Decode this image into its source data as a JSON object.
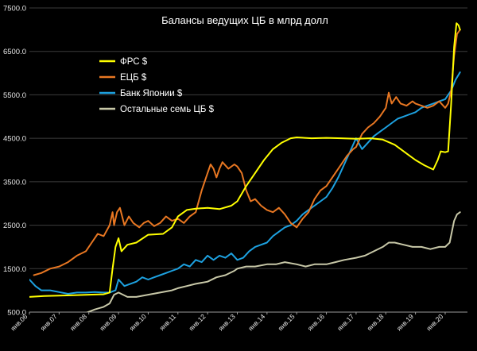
{
  "chart_data": {
    "type": "line",
    "title": "Балансы ведущих ЦБ в млрд долл",
    "xlabel": "",
    "ylabel": "",
    "ylim": [
      500,
      7500
    ],
    "xlim": [
      2006.0,
      2020.75
    ],
    "y_ticks": [
      {
        "v": 500,
        "label": "500.0"
      },
      {
        "v": 1500,
        "label": "1500.0"
      },
      {
        "v": 2500,
        "label": "2500.0"
      },
      {
        "v": 3500,
        "label": "3500.0"
      },
      {
        "v": 4500,
        "label": "4500.0"
      },
      {
        "v": 5500,
        "label": "5500.0"
      },
      {
        "v": 6500,
        "label": "6500.0"
      },
      {
        "v": 7500,
        "label": "7500.0"
      }
    ],
    "x_ticks": [
      {
        "v": 2006,
        "label": "янв.06"
      },
      {
        "v": 2007,
        "label": "янв.07"
      },
      {
        "v": 2008,
        "label": "янв.08"
      },
      {
        "v": 2009,
        "label": "янв.09"
      },
      {
        "v": 2010,
        "label": "янв.10"
      },
      {
        "v": 2011,
        "label": "янв.11"
      },
      {
        "v": 2012,
        "label": "янв.12"
      },
      {
        "v": 2013,
        "label": "янв.13"
      },
      {
        "v": 2014,
        "label": "янв.14"
      },
      {
        "v": 2015,
        "label": "янв.15"
      },
      {
        "v": 2016,
        "label": "янв.16"
      },
      {
        "v": 2017,
        "label": "янв.17"
      },
      {
        "v": 2018,
        "label": "янв.18"
      },
      {
        "v": 2019,
        "label": "янв.19"
      },
      {
        "v": 2020,
        "label": "янв.20"
      }
    ],
    "grid": "horizontal",
    "legend_position": "top-left",
    "series": [
      {
        "name": "ФРС $",
        "color": "#ffff00",
        "points": [
          [
            2006.0,
            850
          ],
          [
            2006.5,
            870
          ],
          [
            2007.0,
            880
          ],
          [
            2007.5,
            890
          ],
          [
            2008.0,
            900
          ],
          [
            2008.5,
            910
          ],
          [
            2008.7,
            950
          ],
          [
            2008.8,
            1500
          ],
          [
            2008.9,
            2000
          ],
          [
            2009.0,
            2200
          ],
          [
            2009.1,
            1900
          ],
          [
            2009.3,
            2050
          ],
          [
            2009.6,
            2100
          ],
          [
            2010.0,
            2280
          ],
          [
            2010.5,
            2300
          ],
          [
            2010.8,
            2450
          ],
          [
            2011.0,
            2700
          ],
          [
            2011.3,
            2850
          ],
          [
            2011.6,
            2880
          ],
          [
            2012.0,
            2900
          ],
          [
            2012.4,
            2870
          ],
          [
            2012.8,
            2950
          ],
          [
            2013.0,
            3050
          ],
          [
            2013.3,
            3400
          ],
          [
            2013.6,
            3700
          ],
          [
            2013.9,
            4000
          ],
          [
            2014.2,
            4250
          ],
          [
            2014.5,
            4400
          ],
          [
            2014.8,
            4500
          ],
          [
            2015.0,
            4520
          ],
          [
            2015.5,
            4500
          ],
          [
            2016.0,
            4510
          ],
          [
            2016.5,
            4500
          ],
          [
            2017.0,
            4490
          ],
          [
            2017.5,
            4500
          ],
          [
            2017.9,
            4470
          ],
          [
            2018.3,
            4350
          ],
          [
            2018.7,
            4150
          ],
          [
            2019.0,
            4000
          ],
          [
            2019.3,
            3880
          ],
          [
            2019.6,
            3780
          ],
          [
            2019.75,
            4000
          ],
          [
            2019.85,
            4200
          ],
          [
            2020.0,
            4180
          ],
          [
            2020.1,
            4200
          ],
          [
            2020.2,
            5300
          ],
          [
            2020.3,
            6600
          ],
          [
            2020.38,
            7150
          ],
          [
            2020.45,
            7100
          ],
          [
            2020.5,
            7000
          ]
        ]
      },
      {
        "name": "ЕЦБ $",
        "color": "#e87722",
        "points": [
          [
            2006.15,
            1350
          ],
          [
            2006.4,
            1400
          ],
          [
            2006.7,
            1500
          ],
          [
            2007.0,
            1550
          ],
          [
            2007.3,
            1650
          ],
          [
            2007.6,
            1800
          ],
          [
            2007.9,
            1900
          ],
          [
            2008.1,
            2100
          ],
          [
            2008.3,
            2300
          ],
          [
            2008.5,
            2250
          ],
          [
            2008.7,
            2500
          ],
          [
            2008.8,
            2800
          ],
          [
            2008.85,
            2500
          ],
          [
            2008.95,
            2800
          ],
          [
            2009.05,
            2900
          ],
          [
            2009.2,
            2500
          ],
          [
            2009.35,
            2700
          ],
          [
            2009.5,
            2550
          ],
          [
            2009.7,
            2450
          ],
          [
            2009.85,
            2550
          ],
          [
            2010.0,
            2600
          ],
          [
            2010.2,
            2480
          ],
          [
            2010.4,
            2550
          ],
          [
            2010.6,
            2700
          ],
          [
            2010.8,
            2600
          ],
          [
            2011.0,
            2650
          ],
          [
            2011.2,
            2550
          ],
          [
            2011.4,
            2700
          ],
          [
            2011.6,
            2800
          ],
          [
            2011.8,
            3300
          ],
          [
            2012.0,
            3700
          ],
          [
            2012.1,
            3900
          ],
          [
            2012.2,
            3800
          ],
          [
            2012.3,
            3600
          ],
          [
            2012.4,
            3800
          ],
          [
            2012.5,
            3950
          ],
          [
            2012.7,
            3800
          ],
          [
            2012.9,
            3900
          ],
          [
            2013.0,
            3850
          ],
          [
            2013.15,
            3700
          ],
          [
            2013.3,
            3300
          ],
          [
            2013.45,
            3050
          ],
          [
            2013.6,
            3100
          ],
          [
            2013.8,
            2950
          ],
          [
            2014.0,
            2850
          ],
          [
            2014.2,
            2800
          ],
          [
            2014.4,
            2900
          ],
          [
            2014.6,
            2750
          ],
          [
            2014.8,
            2550
          ],
          [
            2015.0,
            2450
          ],
          [
            2015.2,
            2650
          ],
          [
            2015.4,
            2800
          ],
          [
            2015.6,
            3100
          ],
          [
            2015.8,
            3300
          ],
          [
            2016.0,
            3400
          ],
          [
            2016.3,
            3700
          ],
          [
            2016.5,
            3900
          ],
          [
            2016.7,
            4100
          ],
          [
            2016.9,
            4250
          ],
          [
            2017.0,
            4300
          ],
          [
            2017.2,
            4600
          ],
          [
            2017.4,
            4750
          ],
          [
            2017.6,
            4850
          ],
          [
            2017.8,
            5000
          ],
          [
            2018.0,
            5200
          ],
          [
            2018.1,
            5550
          ],
          [
            2018.2,
            5300
          ],
          [
            2018.35,
            5450
          ],
          [
            2018.5,
            5300
          ],
          [
            2018.7,
            5250
          ],
          [
            2018.9,
            5350
          ],
          [
            2019.0,
            5300
          ],
          [
            2019.2,
            5250
          ],
          [
            2019.4,
            5200
          ],
          [
            2019.6,
            5250
          ],
          [
            2019.8,
            5350
          ],
          [
            2020.0,
            5200
          ],
          [
            2020.1,
            5300
          ],
          [
            2020.2,
            5600
          ],
          [
            2020.3,
            6400
          ],
          [
            2020.4,
            6900
          ],
          [
            2020.5,
            7000
          ]
        ]
      },
      {
        "name": "Банк Японии $",
        "color": "#1da1e0",
        "points": [
          [
            2006.0,
            1250
          ],
          [
            2006.2,
            1100
          ],
          [
            2006.4,
            1000
          ],
          [
            2006.7,
            1000
          ],
          [
            2007.0,
            960
          ],
          [
            2007.3,
            920
          ],
          [
            2007.6,
            950
          ],
          [
            2007.9,
            950
          ],
          [
            2008.2,
            960
          ],
          [
            2008.5,
            950
          ],
          [
            2008.7,
            950
          ],
          [
            2008.9,
            1000
          ],
          [
            2009.0,
            1250
          ],
          [
            2009.2,
            1100
          ],
          [
            2009.4,
            1150
          ],
          [
            2009.6,
            1200
          ],
          [
            2009.8,
            1300
          ],
          [
            2010.0,
            1250
          ],
          [
            2010.2,
            1300
          ],
          [
            2010.4,
            1350
          ],
          [
            2010.6,
            1400
          ],
          [
            2010.8,
            1450
          ],
          [
            2011.0,
            1500
          ],
          [
            2011.2,
            1600
          ],
          [
            2011.4,
            1550
          ],
          [
            2011.6,
            1700
          ],
          [
            2011.8,
            1650
          ],
          [
            2012.0,
            1800
          ],
          [
            2012.2,
            1700
          ],
          [
            2012.4,
            1800
          ],
          [
            2012.6,
            1750
          ],
          [
            2012.8,
            1850
          ],
          [
            2013.0,
            1700
          ],
          [
            2013.2,
            1750
          ],
          [
            2013.4,
            1900
          ],
          [
            2013.6,
            2000
          ],
          [
            2013.8,
            2050
          ],
          [
            2014.0,
            2100
          ],
          [
            2014.2,
            2250
          ],
          [
            2014.4,
            2350
          ],
          [
            2014.6,
            2450
          ],
          [
            2014.8,
            2500
          ],
          [
            2015.0,
            2600
          ],
          [
            2015.2,
            2750
          ],
          [
            2015.4,
            2850
          ],
          [
            2015.6,
            2950
          ],
          [
            2015.8,
            3050
          ],
          [
            2016.0,
            3150
          ],
          [
            2016.2,
            3350
          ],
          [
            2016.4,
            3600
          ],
          [
            2016.6,
            3900
          ],
          [
            2016.8,
            4200
          ],
          [
            2017.0,
            4500
          ],
          [
            2017.2,
            4250
          ],
          [
            2017.4,
            4400
          ],
          [
            2017.6,
            4550
          ],
          [
            2017.8,
            4650
          ],
          [
            2018.0,
            4750
          ],
          [
            2018.2,
            4850
          ],
          [
            2018.4,
            4950
          ],
          [
            2018.6,
            5000
          ],
          [
            2018.8,
            5050
          ],
          [
            2019.0,
            5100
          ],
          [
            2019.2,
            5200
          ],
          [
            2019.4,
            5250
          ],
          [
            2019.6,
            5300
          ],
          [
            2019.8,
            5350
          ],
          [
            2020.0,
            5400
          ],
          [
            2020.2,
            5600
          ],
          [
            2020.35,
            5850
          ],
          [
            2020.5,
            6020
          ]
        ]
      },
      {
        "name": "Остальные семь ЦБ $",
        "color": "#c8c8a8",
        "points": [
          [
            2007.3,
            300
          ],
          [
            2007.6,
            380
          ],
          [
            2007.9,
            480
          ],
          [
            2008.2,
            560
          ],
          [
            2008.5,
            620
          ],
          [
            2008.7,
            700
          ],
          [
            2008.85,
            900
          ],
          [
            2009.0,
            950
          ],
          [
            2009.3,
            850
          ],
          [
            2009.6,
            850
          ],
          [
            2010.0,
            900
          ],
          [
            2010.4,
            950
          ],
          [
            2010.8,
            1000
          ],
          [
            2011.0,
            1050
          ],
          [
            2011.3,
            1100
          ],
          [
            2011.6,
            1150
          ],
          [
            2012.0,
            1200
          ],
          [
            2012.3,
            1300
          ],
          [
            2012.6,
            1350
          ],
          [
            2012.9,
            1450
          ],
          [
            2013.0,
            1500
          ],
          [
            2013.3,
            1550
          ],
          [
            2013.6,
            1550
          ],
          [
            2014.0,
            1600
          ],
          [
            2014.3,
            1600
          ],
          [
            2014.6,
            1650
          ],
          [
            2015.0,
            1600
          ],
          [
            2015.3,
            1550
          ],
          [
            2015.6,
            1600
          ],
          [
            2016.0,
            1600
          ],
          [
            2016.3,
            1650
          ],
          [
            2016.6,
            1700
          ],
          [
            2017.0,
            1750
          ],
          [
            2017.3,
            1800
          ],
          [
            2017.6,
            1900
          ],
          [
            2017.9,
            2000
          ],
          [
            2018.1,
            2100
          ],
          [
            2018.3,
            2100
          ],
          [
            2018.6,
            2050
          ],
          [
            2018.9,
            2000
          ],
          [
            2019.2,
            2000
          ],
          [
            2019.5,
            1950
          ],
          [
            2019.8,
            2000
          ],
          [
            2020.0,
            2000
          ],
          [
            2020.15,
            2100
          ],
          [
            2020.3,
            2600
          ],
          [
            2020.4,
            2750
          ],
          [
            2020.5,
            2800
          ]
        ]
      }
    ]
  }
}
